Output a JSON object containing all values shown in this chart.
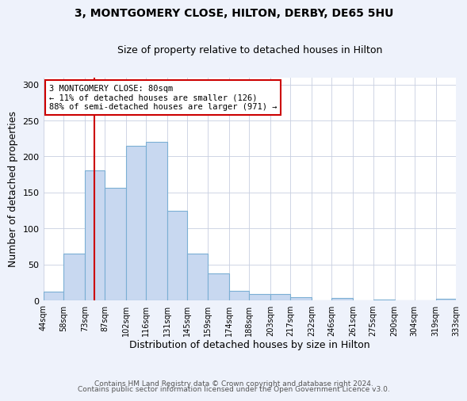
{
  "title": "3, MONTGOMERY CLOSE, HILTON, DERBY, DE65 5HU",
  "subtitle": "Size of property relative to detached houses in Hilton",
  "xlabel": "Distribution of detached houses by size in Hilton",
  "ylabel": "Number of detached properties",
  "bar_edges": [
    44,
    58,
    73,
    87,
    102,
    116,
    131,
    145,
    159,
    174,
    188,
    203,
    217,
    232,
    246,
    261,
    275,
    290,
    304,
    319,
    333
  ],
  "bar_heights": [
    12,
    65,
    181,
    157,
    215,
    220,
    125,
    65,
    37,
    13,
    9,
    9,
    4,
    0,
    3,
    0,
    1,
    0,
    0,
    2
  ],
  "bar_color": "#c8d8f0",
  "bar_edge_color": "#7bafd4",
  "property_size": 80,
  "vline_color": "#cc0000",
  "annotation_text": "3 MONTGOMERY CLOSE: 80sqm\n← 11% of detached houses are smaller (126)\n88% of semi-detached houses are larger (971) →",
  "annotation_box_color": "#ffffff",
  "annotation_box_edge_color": "#cc0000",
  "ylim": [
    0,
    310
  ],
  "tick_labels": [
    "44sqm",
    "58sqm",
    "73sqm",
    "87sqm",
    "102sqm",
    "116sqm",
    "131sqm",
    "145sqm",
    "159sqm",
    "174sqm",
    "188sqm",
    "203sqm",
    "217sqm",
    "232sqm",
    "246sqm",
    "261sqm",
    "275sqm",
    "290sqm",
    "304sqm",
    "319sqm",
    "333sqm"
  ],
  "footer1": "Contains HM Land Registry data © Crown copyright and database right 2024.",
  "footer2": "Contains public sector information licensed under the Open Government Licence v3.0.",
  "bg_color": "#eef2fb",
  "plot_bg_color": "#ffffff",
  "grid_color": "#c8cfe0"
}
